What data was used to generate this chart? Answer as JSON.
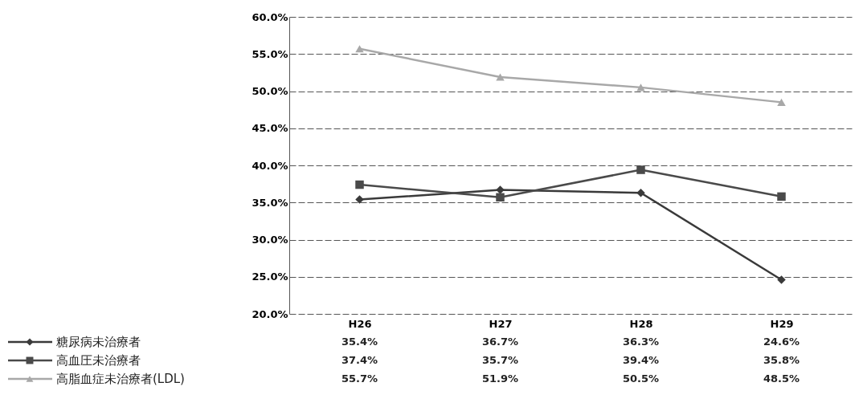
{
  "chart_data": {
    "type": "line",
    "categories": [
      "H26",
      "H27",
      "H28",
      "H29"
    ],
    "series": [
      {
        "name": "糖尿病未治療者",
        "color": "#3a3a3a",
        "marker": "diamond",
        "values": [
          35.4,
          36.7,
          36.3,
          24.6
        ],
        "value_labels": [
          "35.4%",
          "36.7%",
          "36.3%",
          "24.6%"
        ]
      },
      {
        "name": "高血圧未治療者",
        "color": "#4a4a4a",
        "marker": "square",
        "values": [
          37.4,
          35.7,
          39.4,
          35.8
        ],
        "value_labels": [
          "37.4%",
          "35.7%",
          "39.4%",
          "35.8%"
        ]
      },
      {
        "name": "高脂血症未治療者(LDL)",
        "color": "#a8a8a8",
        "marker": "triangle",
        "values": [
          55.7,
          51.9,
          50.5,
          48.5
        ],
        "value_labels": [
          "55.7%",
          "51.9%",
          "50.5%",
          "48.5%"
        ]
      }
    ],
    "ylim": [
      20,
      60
    ],
    "yticks": [
      {
        "value": 20,
        "label": "20.0%"
      },
      {
        "value": 25,
        "label": "25.0%"
      },
      {
        "value": 30,
        "label": "30.0%"
      },
      {
        "value": 35,
        "label": "35.0%"
      },
      {
        "value": 40,
        "label": "40.0%"
      },
      {
        "value": 45,
        "label": "45.0%"
      },
      {
        "value": 50,
        "label": "50.0%"
      },
      {
        "value": 55,
        "label": "55.0%"
      },
      {
        "value": 60,
        "label": "60.0%"
      }
    ],
    "grid": "y",
    "legend": "bottom left",
    "line_style": "solid"
  }
}
